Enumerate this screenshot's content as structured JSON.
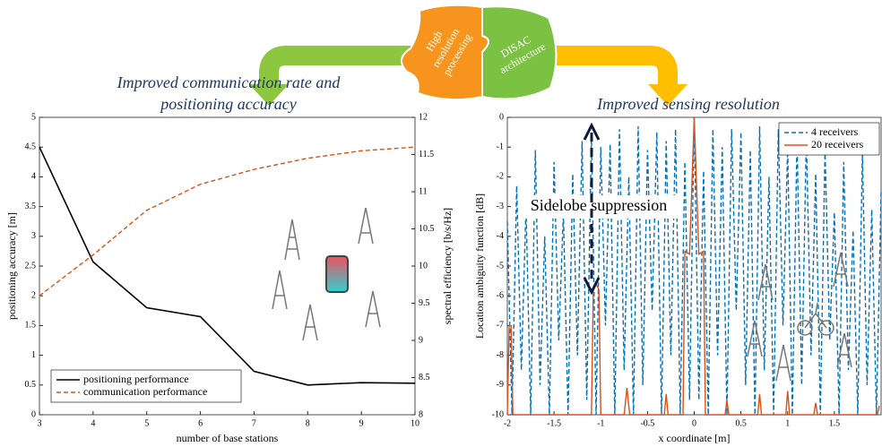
{
  "chart_data": [
    {
      "type": "line",
      "title_lines": [
        "Improved communication rate and",
        "positioning accuracy"
      ],
      "x_label": "number of base stations",
      "y_label": "positioning accuracy [m]",
      "y2_label": "spectral efficiency [b/s/Hz]",
      "x": [
        3,
        4,
        5,
        6,
        7,
        8,
        9,
        10
      ],
      "series": [
        {
          "name": "positioning performance",
          "color": "#000000",
          "dashed": false,
          "values": [
            4.5,
            2.57,
            1.8,
            1.65,
            0.73,
            0.5,
            0.54,
            0.53
          ]
        },
        {
          "name": "communication performance",
          "color": "#d95319",
          "dashed": true,
          "axis": "y2",
          "values": [
            9.6,
            10.15,
            10.75,
            11.1,
            11.3,
            11.45,
            11.55,
            11.6
          ]
        }
      ],
      "xlim": [
        3,
        10
      ],
      "xticks": [
        3,
        4,
        5,
        6,
        7,
        8,
        9,
        10
      ],
      "ylim": [
        0,
        5
      ],
      "yticks": [
        0,
        0.5,
        1,
        1.5,
        2,
        2.5,
        3,
        3.5,
        4,
        4.5,
        5
      ],
      "y2lim": [
        8,
        12
      ],
      "y2ticks": [
        8,
        8.5,
        9,
        9.5,
        10,
        10.5,
        11,
        11.5,
        12
      ],
      "legend": "lower left"
    },
    {
      "type": "line",
      "title_lines": [
        "Improved sensing resolution"
      ],
      "x_label": "x coordinate [m]",
      "y_label": "Location ambiguity function [dB]",
      "annotation": "Sidelobe suppression",
      "series": [
        {
          "name": "4 receivers",
          "color": "#0072bd",
          "dashed": true,
          "x": [
            -2,
            -1.95,
            -1.9,
            -1.85,
            -1.8,
            -1.75,
            -1.7,
            -1.65,
            -1.6,
            -1.55,
            -1.5,
            -1.45,
            -1.4,
            -1.35,
            -1.3,
            -1.25,
            -1.2,
            -1.15,
            -1.1,
            -1.05,
            -1,
            -0.95,
            -0.9,
            -0.85,
            -0.8,
            -0.75,
            -0.7,
            -0.65,
            -0.6,
            -0.55,
            -0.5,
            -0.45,
            -0.4,
            -0.35,
            -0.3,
            -0.25,
            -0.2,
            -0.15,
            -0.1,
            -0.05,
            0,
            0.05,
            0.1,
            0.15,
            0.2,
            0.25,
            0.3,
            0.35,
            0.4,
            0.45,
            0.5,
            0.55,
            0.6,
            0.65,
            0.7,
            0.75,
            0.8,
            0.85,
            0.9,
            0.95,
            1,
            1.05,
            1.1,
            1.15,
            1.2,
            1.25,
            1.3,
            1.35,
            1.4,
            1.45,
            1.5,
            1.55,
            1.6,
            1.65,
            1.7,
            1.75,
            1.8,
            1.85,
            1.9,
            1.95,
            2
          ],
          "values": [
            -3.5,
            -10,
            -2.3,
            -8.5,
            -3,
            -10,
            -1.1,
            -9,
            -4,
            -10,
            -1.5,
            -7.5,
            -3.2,
            -10,
            -1.9,
            -8,
            -0.8,
            -9.5,
            -0.6,
            -10,
            -1,
            -7,
            -0.9,
            -10,
            -0.4,
            -8.5,
            -2,
            -10,
            -0.3,
            -9,
            -1.1,
            -6.5,
            -0.5,
            -10,
            -0.8,
            -8,
            -0.4,
            -10,
            -1.5,
            -9.5,
            0,
            -9.5,
            -1.8,
            -10,
            -0.4,
            -8,
            -1,
            -10,
            -0.4,
            -6.5,
            -0.5,
            -9,
            -1.1,
            -10,
            -0.3,
            -8.5,
            -2,
            -10,
            -0.4,
            -7,
            -1,
            -10,
            -0.7,
            -9,
            -0.6,
            -8,
            -1.9,
            -10,
            -1.1,
            -7.5,
            -3.2,
            -10,
            -1.5,
            -8.5,
            -3.8,
            -10,
            -1.2,
            -9,
            -3.1,
            -10,
            -2.5
          ]
        },
        {
          "name": "20 receivers",
          "color": "#d95319",
          "dashed": false,
          "x": [
            -2,
            -1.98,
            -1.96,
            -1.94,
            -1.1,
            -1.08,
            -1.05,
            -1.02,
            -1,
            -0.75,
            -0.72,
            -0.69,
            -0.32,
            -0.3,
            -0.28,
            -0.12,
            -0.1,
            -0.05,
            0,
            0.05,
            0.1,
            0.12,
            0.33,
            0.35,
            0.37,
            0.68,
            0.7,
            0.72,
            0.98,
            1,
            1.02,
            1.28,
            1.3,
            1.32,
            1.96,
            1.98
          ],
          "values": [
            -10,
            -7,
            -7,
            -10,
            -10,
            -5.8,
            -5.6,
            -5.8,
            -10,
            -10,
            -9.1,
            -10,
            -10,
            -9.3,
            -10,
            -10,
            -4.5,
            -4.6,
            0,
            -4.6,
            -4.5,
            -10,
            -10,
            -9.5,
            -10,
            -10,
            -9.3,
            -10,
            -10,
            -9.2,
            -10,
            -10,
            -9.6,
            -10,
            -10,
            -9.7
          ]
        }
      ],
      "xlim": [
        -2,
        2
      ],
      "xticks": [
        -2,
        -1.5,
        -1,
        -0.5,
        0,
        0.5,
        1,
        1.5
      ],
      "ylim": [
        -10,
        0
      ],
      "yticks": [
        -10,
        -9,
        -8,
        -7,
        -6,
        -5,
        -4,
        -3,
        -2,
        -1,
        0
      ],
      "legend": "upper right"
    }
  ],
  "puzzle": {
    "left_lines": [
      "High",
      "resolution",
      "processing"
    ],
    "right_lines": [
      "DISAC",
      "architecture"
    ]
  }
}
